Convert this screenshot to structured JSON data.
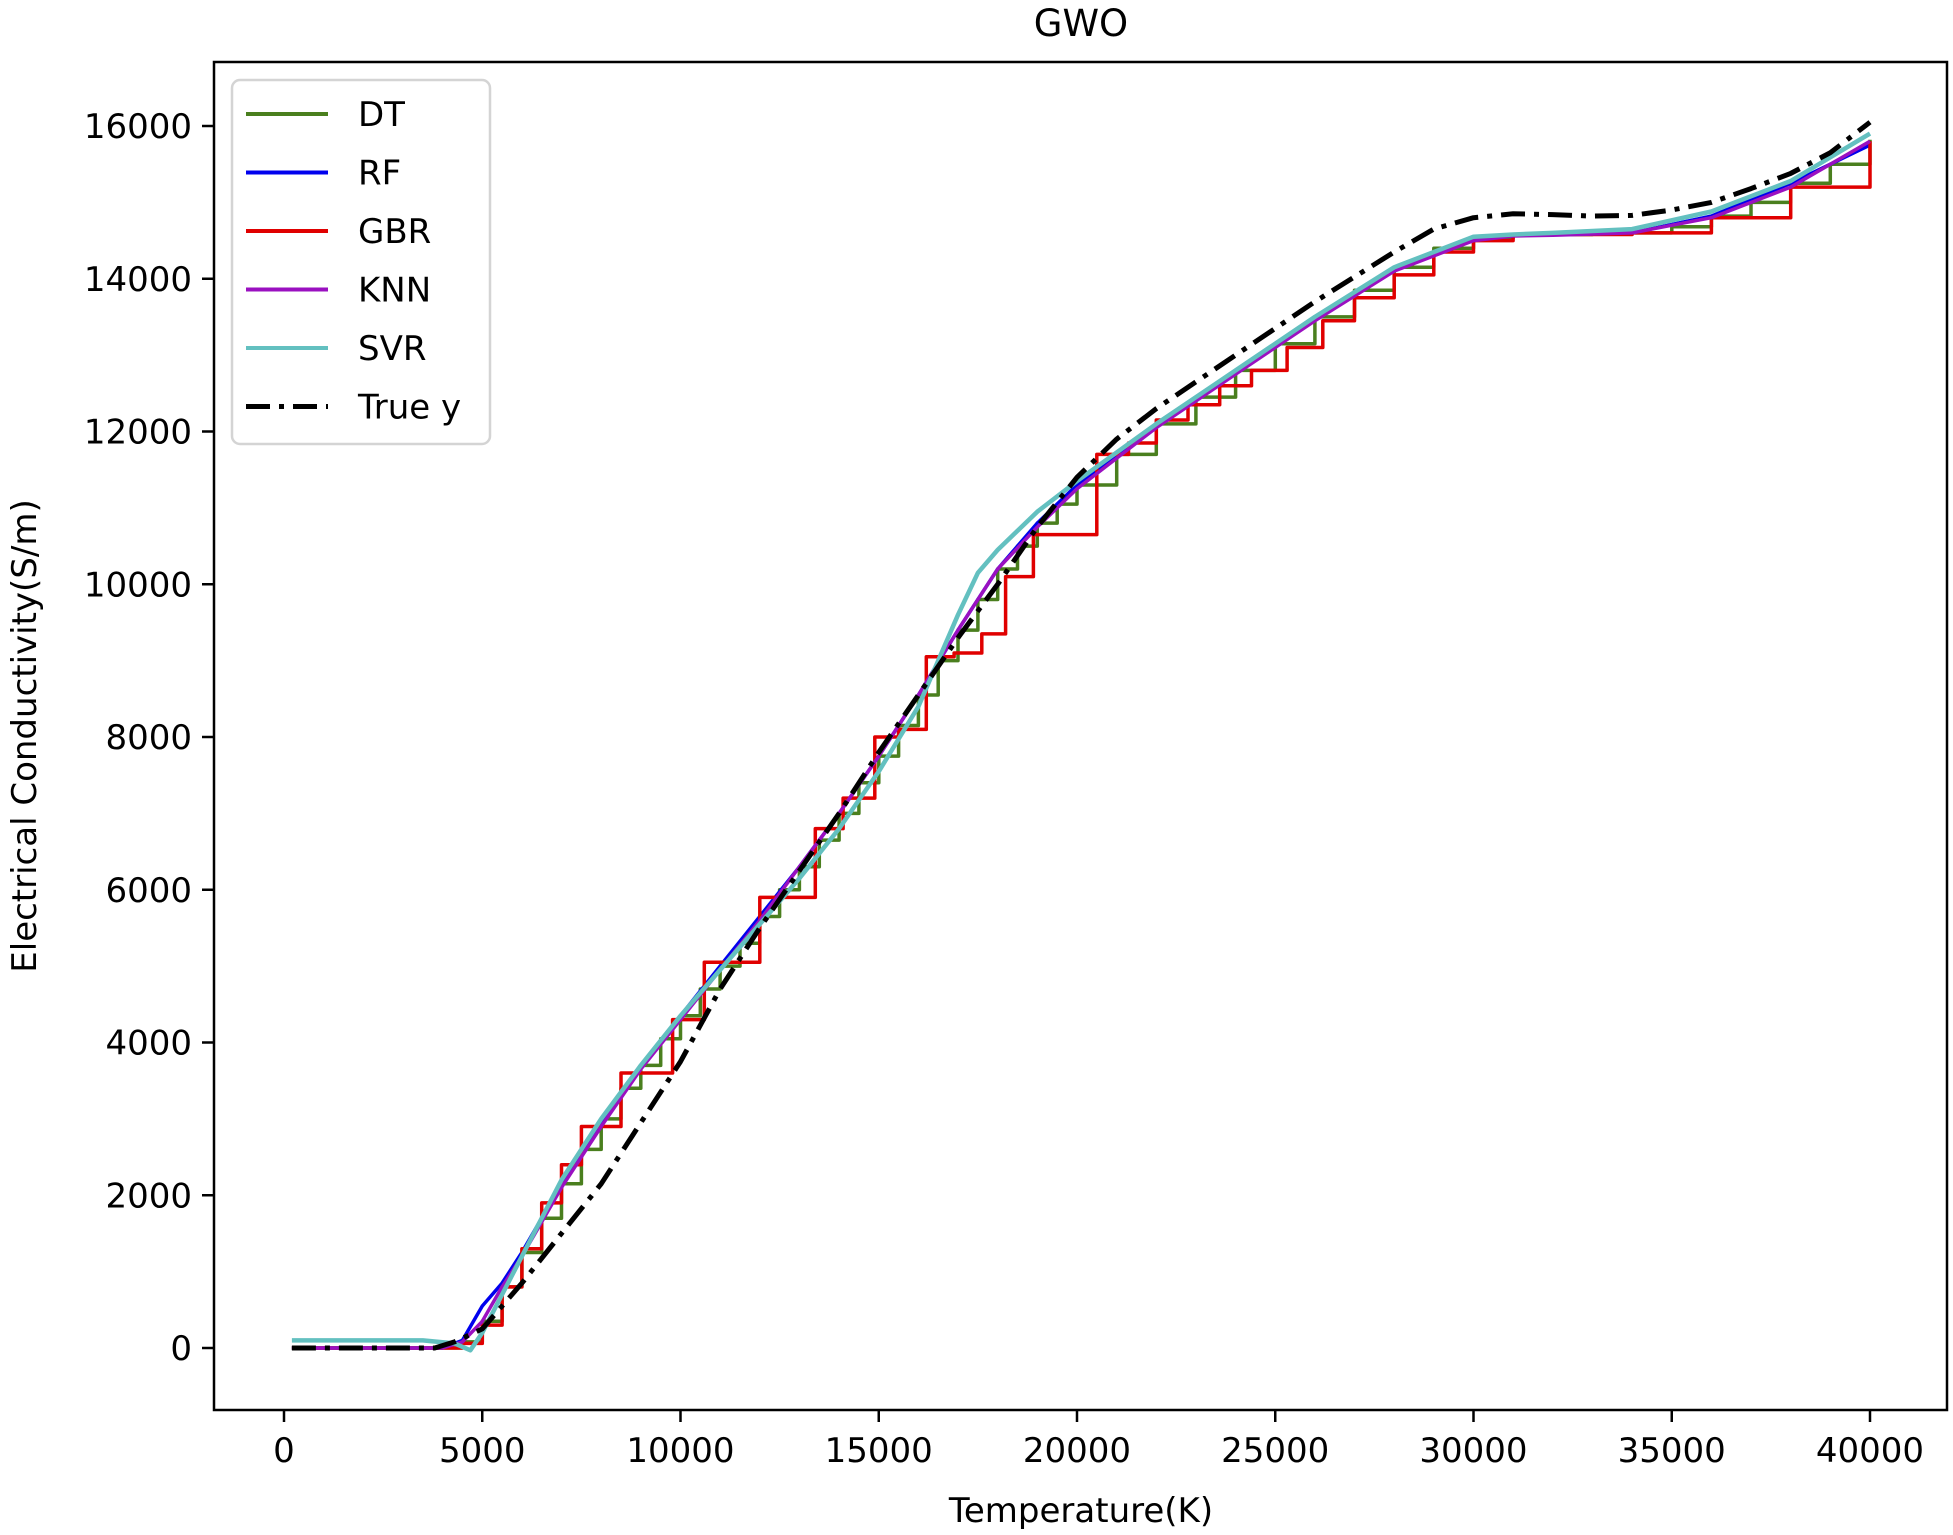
{
  "chart_data": {
    "type": "line",
    "title": "GWO",
    "xlabel": "Temperature(K)",
    "ylabel": "Electrical Conductivity(S/m)",
    "xlim": [
      -1800,
      41800
    ],
    "ylim": [
      -800,
      16800
    ],
    "xticks": [
      0,
      5000,
      10000,
      15000,
      20000,
      25000,
      30000,
      35000,
      40000
    ],
    "yticks": [
      0,
      2000,
      4000,
      6000,
      8000,
      10000,
      12000,
      14000,
      16000
    ],
    "grid": false,
    "legend_position": "upper left",
    "series": [
      {
        "name": "DT",
        "color": "#4a7f1e",
        "style": "solid",
        "step": true,
        "x": [
          200,
          4000,
          4500,
          5000,
          5500,
          6000,
          6500,
          7000,
          7500,
          8000,
          8500,
          9000,
          9500,
          10000,
          10500,
          11000,
          11500,
          12000,
          12500,
          13000,
          13500,
          14000,
          14500,
          15000,
          15500,
          16000,
          16500,
          17000,
          17500,
          18000,
          18500,
          19000,
          19500,
          20000,
          21000,
          22000,
          23000,
          24000,
          25000,
          26000,
          27000,
          28000,
          29000,
          30000,
          31000,
          32000,
          33000,
          34000,
          35000,
          36000,
          37000,
          38000,
          39000,
          40000
        ],
        "y": [
          0,
          0,
          80,
          350,
          800,
          1250,
          1700,
          2150,
          2600,
          3000,
          3400,
          3700,
          4050,
          4350,
          4700,
          5000,
          5300,
          5650,
          6000,
          6300,
          6650,
          7000,
          7400,
          7750,
          8150,
          8550,
          9000,
          9400,
          9800,
          10200,
          10500,
          10800,
          11050,
          11300,
          11700,
          12100,
          12450,
          12800,
          13150,
          13500,
          13850,
          14150,
          14400,
          14530,
          14580,
          14580,
          14590,
          14600,
          14680,
          14820,
          15000,
          15250,
          15500,
          15820
        ]
      },
      {
        "name": "RF",
        "color": "#0000ee",
        "style": "solid",
        "step": false,
        "x": [
          200,
          4000,
          4500,
          5000,
          5500,
          6000,
          7000,
          8000,
          9000,
          10000,
          11000,
          12000,
          13000,
          14000,
          15000,
          16000,
          17000,
          18000,
          19000,
          20000,
          22000,
          24000,
          26000,
          28000,
          30000,
          31000,
          32000,
          34000,
          36000,
          38000,
          40000
        ],
        "y": [
          0,
          0,
          100,
          550,
          850,
          1250,
          2150,
          2950,
          3700,
          4350,
          5000,
          5650,
          6300,
          7000,
          7750,
          8550,
          9400,
          10200,
          10800,
          11300,
          12100,
          12800,
          13500,
          14150,
          14530,
          14580,
          14580,
          14600,
          14820,
          15250,
          15750
        ]
      },
      {
        "name": "GBR",
        "color": "#e00000",
        "style": "solid",
        "step": true,
        "x": [
          200,
          4000,
          4500,
          5000,
          5500,
          6000,
          6500,
          7000,
          7500,
          8000,
          8500,
          9300,
          9800,
          10600,
          11300,
          12000,
          12700,
          13400,
          14100,
          14900,
          15500,
          16200,
          16900,
          17600,
          18200,
          18900,
          19800,
          20500,
          21300,
          22000,
          22800,
          23600,
          24400,
          25300,
          26200,
          27000,
          28000,
          29000,
          30000,
          31000,
          32000,
          34000,
          36000,
          38000,
          40000
        ],
        "y": [
          0,
          0,
          60,
          300,
          800,
          1300,
          1900,
          2400,
          2900,
          2900,
          3600,
          3600,
          4300,
          5050,
          5050,
          5900,
          5900,
          6800,
          7200,
          8000,
          8100,
          9050,
          9100,
          9350,
          10100,
          10650,
          10650,
          11700,
          11850,
          12150,
          12350,
          12600,
          12800,
          13100,
          13450,
          13750,
          14050,
          14350,
          14500,
          14570,
          14580,
          14600,
          14800,
          15200,
          15800
        ]
      },
      {
        "name": "KNN",
        "color": "#9a10c0",
        "style": "solid",
        "step": false,
        "x": [
          200,
          4000,
          4500,
          5000,
          5500,
          6000,
          7000,
          8000,
          9000,
          10000,
          11000,
          12000,
          13000,
          14000,
          15000,
          16000,
          17000,
          18000,
          19000,
          20000,
          22000,
          24000,
          26000,
          28000,
          30000,
          31000,
          32000,
          34000,
          36000,
          38000,
          40000
        ],
        "y": [
          0,
          0,
          80,
          350,
          800,
          1200,
          2100,
          2900,
          3650,
          4300,
          4950,
          5600,
          6300,
          7000,
          7750,
          8550,
          9400,
          10200,
          10750,
          11250,
          12050,
          12750,
          13450,
          14100,
          14500,
          14560,
          14570,
          14600,
          14800,
          15200,
          15800
        ]
      },
      {
        "name": "SVR",
        "color": "#63c0c0",
        "style": "solid",
        "step": false,
        "x": [
          200,
          3500,
          4300,
          4700,
          5000,
          5500,
          6000,
          7000,
          8000,
          9000,
          10000,
          11000,
          12000,
          13000,
          14000,
          15000,
          16000,
          16500,
          17000,
          17500,
          18000,
          19000,
          20000,
          22000,
          24000,
          26000,
          28000,
          30000,
          31000,
          32000,
          34000,
          36000,
          38000,
          40000
        ],
        "y": [
          100,
          100,
          60,
          -30,
          200,
          700,
          1200,
          2200,
          3000,
          3700,
          4350,
          4950,
          5550,
          6150,
          6800,
          7550,
          8400,
          9000,
          9600,
          10150,
          10450,
          10950,
          11350,
          12100,
          12800,
          13500,
          14150,
          14550,
          14580,
          14600,
          14650,
          14880,
          15280,
          15900
        ]
      },
      {
        "name": "True y",
        "color": "#000000",
        "style": "dashdot",
        "step": false,
        "x": [
          200,
          3800,
          4300,
          5000,
          6000,
          7000,
          8000,
          9000,
          10000,
          11000,
          12000,
          13000,
          14000,
          15000,
          16000,
          17000,
          18000,
          19000,
          20000,
          21000,
          22000,
          24000,
          26000,
          28000,
          29000,
          30000,
          31000,
          32000,
          33000,
          34000,
          35000,
          36000,
          37000,
          38000,
          39000,
          40000
        ],
        "y": [
          0,
          0,
          80,
          250,
          850,
          1500,
          2150,
          2950,
          3750,
          4700,
          5500,
          6250,
          7000,
          7800,
          8550,
          9300,
          10000,
          10750,
          11400,
          11900,
          12300,
          13000,
          13700,
          14350,
          14650,
          14800,
          14850,
          14840,
          14820,
          14830,
          14900,
          15000,
          15180,
          15380,
          15650,
          16050
        ]
      }
    ]
  },
  "legend": {
    "items": [
      {
        "label": "DT",
        "color": "#4a7f1e",
        "style": "solid"
      },
      {
        "label": "RF",
        "color": "#0000ee",
        "style": "solid"
      },
      {
        "label": "GBR",
        "color": "#e00000",
        "style": "solid"
      },
      {
        "label": "KNN",
        "color": "#9a10c0",
        "style": "solid"
      },
      {
        "label": "SVR",
        "color": "#63c0c0",
        "style": "solid"
      },
      {
        "label": "True y",
        "color": "#000000",
        "style": "dashdot"
      }
    ]
  }
}
